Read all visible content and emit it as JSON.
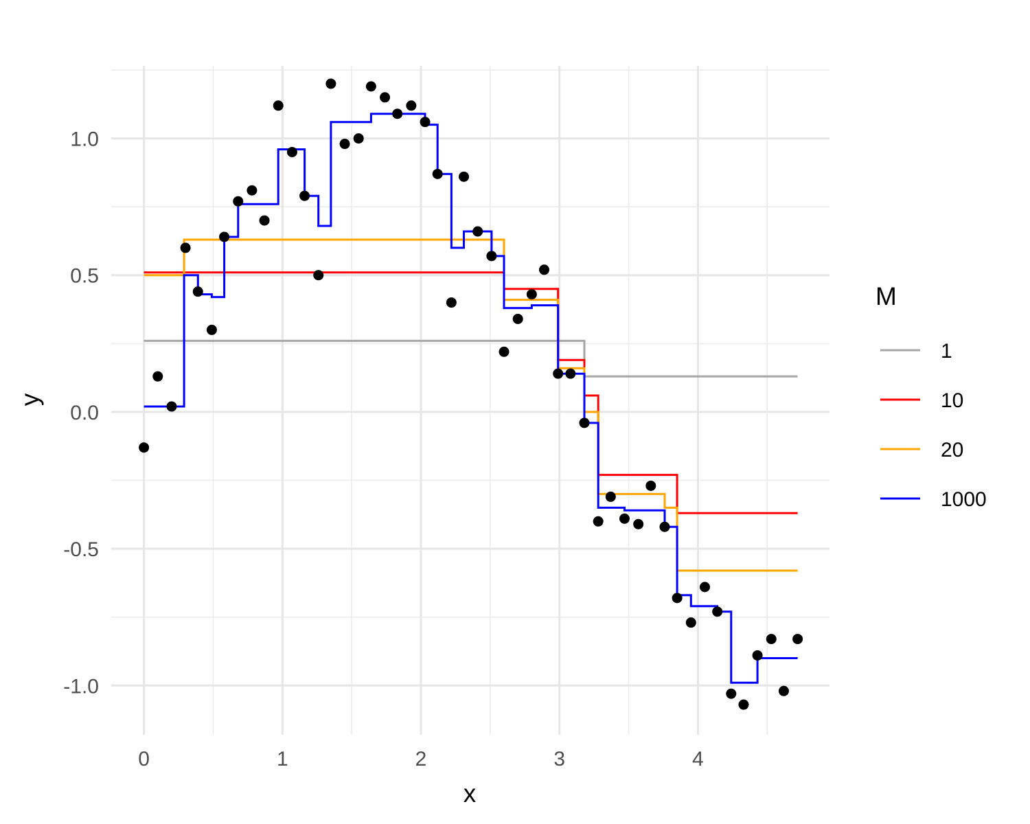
{
  "chart_data": {
    "type": "line",
    "xlabel": "x",
    "ylabel": "y",
    "xlim": [
      -0.236,
      4.95
    ],
    "ylim": [
      -1.18,
      1.265
    ],
    "x_ticks": [
      {
        "value": 0,
        "label": "0"
      },
      {
        "value": 1,
        "label": "1"
      },
      {
        "value": 2,
        "label": "2"
      },
      {
        "value": 3,
        "label": "3"
      },
      {
        "value": 4,
        "label": "4"
      }
    ],
    "y_ticks": [
      {
        "value": -1.0,
        "label": "-1.0"
      },
      {
        "value": -0.5,
        "label": "-0.5"
      },
      {
        "value": 0.0,
        "label": "0.0"
      },
      {
        "value": 0.5,
        "label": "0.5"
      },
      {
        "value": 1.0,
        "label": "1.0"
      }
    ],
    "grid": true,
    "legend": {
      "title": "M",
      "placement": "right"
    },
    "points": {
      "x": [
        0.0,
        0.1,
        0.2,
        0.3,
        0.39,
        0.49,
        0.58,
        0.68,
        0.78,
        0.87,
        0.97,
        1.07,
        1.16,
        1.26,
        1.35,
        1.45,
        1.55,
        1.64,
        1.74,
        1.83,
        1.93,
        2.03,
        2.12,
        2.22,
        2.31,
        2.41,
        2.51,
        2.6,
        2.7,
        2.8,
        2.89,
        2.99,
        3.08,
        3.18,
        3.28,
        3.37,
        3.47,
        3.57,
        3.66,
        3.76,
        3.85,
        3.95,
        4.05,
        4.14,
        4.24,
        4.33,
        4.43,
        4.53,
        4.62,
        4.72
      ],
      "y": [
        -0.13,
        0.13,
        0.02,
        0.6,
        0.44,
        0.3,
        0.64,
        0.77,
        0.81,
        0.7,
        1.12,
        0.95,
        0.79,
        0.5,
        1.2,
        0.98,
        1.0,
        1.19,
        1.15,
        1.09,
        1.12,
        1.06,
        0.87,
        0.4,
        0.86,
        0.66,
        0.57,
        0.22,
        0.34,
        0.43,
        0.52,
        0.14,
        0.14,
        -0.04,
        -0.4,
        -0.31,
        -0.39,
        -0.41,
        -0.27,
        -0.42,
        -0.68,
        -0.77,
        -0.64,
        -0.73,
        -1.03,
        -1.07,
        -0.89,
        -0.83,
        -1.02,
        -0.83
      ]
    },
    "series": [
      {
        "name": "1",
        "color": "#a6a6a6",
        "steps": [
          [
            0.0,
            0.26
          ],
          [
            3.18,
            0.13
          ],
          [
            4.72,
            0.13
          ]
        ]
      },
      {
        "name": "10",
        "color": "#ff0000",
        "steps": [
          [
            0.0,
            0.51
          ],
          [
            2.6,
            0.45
          ],
          [
            2.99,
            0.19
          ],
          [
            3.18,
            0.06
          ],
          [
            3.28,
            -0.23
          ],
          [
            3.85,
            -0.37
          ],
          [
            4.72,
            -0.37
          ]
        ]
      },
      {
        "name": "20",
        "color": "#ffa500",
        "steps": [
          [
            0.0,
            0.5
          ],
          [
            0.29,
            0.63
          ],
          [
            2.6,
            0.41
          ],
          [
            2.99,
            0.16
          ],
          [
            3.18,
            0.0
          ],
          [
            3.28,
            -0.3
          ],
          [
            3.76,
            -0.35
          ],
          [
            3.85,
            -0.58
          ],
          [
            4.72,
            -0.58
          ]
        ]
      },
      {
        "name": "1000",
        "color": "#0000ff",
        "steps": [
          [
            0.0,
            0.02
          ],
          [
            0.29,
            0.5
          ],
          [
            0.39,
            0.43
          ],
          [
            0.49,
            0.42
          ],
          [
            0.58,
            0.64
          ],
          [
            0.68,
            0.76
          ],
          [
            0.97,
            0.96
          ],
          [
            1.16,
            0.79
          ],
          [
            1.26,
            0.68
          ],
          [
            1.35,
            1.06
          ],
          [
            1.64,
            1.09
          ],
          [
            2.03,
            1.05
          ],
          [
            2.12,
            0.87
          ],
          [
            2.22,
            0.6
          ],
          [
            2.31,
            0.66
          ],
          [
            2.51,
            0.57
          ],
          [
            2.6,
            0.38
          ],
          [
            2.8,
            0.39
          ],
          [
            2.99,
            0.14
          ],
          [
            3.18,
            -0.04
          ],
          [
            3.28,
            -0.35
          ],
          [
            3.47,
            -0.36
          ],
          [
            3.76,
            -0.42
          ],
          [
            3.85,
            -0.67
          ],
          [
            3.95,
            -0.71
          ],
          [
            4.14,
            -0.73
          ],
          [
            4.24,
            -0.99
          ],
          [
            4.43,
            -0.9
          ],
          [
            4.72,
            -0.9
          ]
        ]
      }
    ]
  }
}
